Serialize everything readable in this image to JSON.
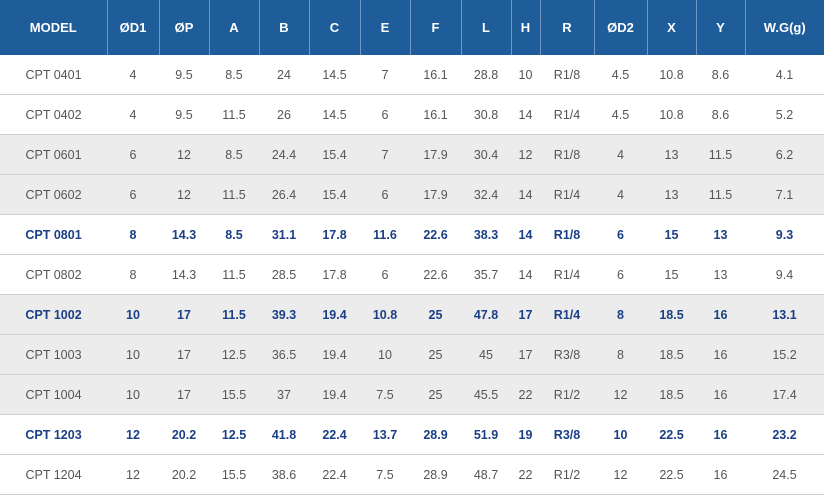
{
  "table": {
    "headers": [
      "MODEL",
      "ØD1",
      "ØP",
      "A",
      "B",
      "C",
      "E",
      "F",
      "L",
      "H",
      "R",
      "ØD2",
      "X",
      "Y",
      "W.G(g)"
    ],
    "rows": [
      {
        "bold": false,
        "shaded": false,
        "cells": [
          "CPT 0401",
          "4",
          "9.5",
          "8.5",
          "24",
          "14.5",
          "7",
          "16.1",
          "28.8",
          "10",
          "R1/8",
          "4.5",
          "10.8",
          "8.6",
          "4.1"
        ]
      },
      {
        "bold": false,
        "shaded": false,
        "cells": [
          "CPT 0402",
          "4",
          "9.5",
          "11.5",
          "26",
          "14.5",
          "6",
          "16.1",
          "30.8",
          "14",
          "R1/4",
          "4.5",
          "10.8",
          "8.6",
          "5.2"
        ]
      },
      {
        "bold": false,
        "shaded": true,
        "cells": [
          "CPT 0601",
          "6",
          "12",
          "8.5",
          "24.4",
          "15.4",
          "7",
          "17.9",
          "30.4",
          "12",
          "R1/8",
          "4",
          "13",
          "11.5",
          "6.2"
        ]
      },
      {
        "bold": false,
        "shaded": true,
        "cells": [
          "CPT 0602",
          "6",
          "12",
          "11.5",
          "26.4",
          "15.4",
          "6",
          "17.9",
          "32.4",
          "14",
          "R1/4",
          "4",
          "13",
          "11.5",
          "7.1"
        ]
      },
      {
        "bold": true,
        "shaded": false,
        "cells": [
          "CPT 0801",
          "8",
          "14.3",
          "8.5",
          "31.1",
          "17.8",
          "11.6",
          "22.6",
          "38.3",
          "14",
          "R1/8",
          "6",
          "15",
          "13",
          "9.3"
        ]
      },
      {
        "bold": false,
        "shaded": false,
        "cells": [
          "CPT 0802",
          "8",
          "14.3",
          "11.5",
          "28.5",
          "17.8",
          "6",
          "22.6",
          "35.7",
          "14",
          "R1/4",
          "6",
          "15",
          "13",
          "9.4"
        ]
      },
      {
        "bold": true,
        "shaded": true,
        "cells": [
          "CPT 1002",
          "10",
          "17",
          "11.5",
          "39.3",
          "19.4",
          "10.8",
          "25",
          "47.8",
          "17",
          "R1/4",
          "8",
          "18.5",
          "16",
          "13.1"
        ]
      },
      {
        "bold": false,
        "shaded": true,
        "cells": [
          "CPT 1003",
          "10",
          "17",
          "12.5",
          "36.5",
          "19.4",
          "10",
          "25",
          "45",
          "17",
          "R3/8",
          "8",
          "18.5",
          "16",
          "15.2"
        ]
      },
      {
        "bold": false,
        "shaded": true,
        "cells": [
          "CPT 1004",
          "10",
          "17",
          "15.5",
          "37",
          "19.4",
          "7.5",
          "25",
          "45.5",
          "22",
          "R1/2",
          "12",
          "18.5",
          "16",
          "17.4"
        ]
      },
      {
        "bold": true,
        "shaded": false,
        "cells": [
          "CPT 1203",
          "12",
          "20.2",
          "12.5",
          "41.8",
          "22.4",
          "13.7",
          "28.9",
          "51.9",
          "19",
          "R3/8",
          "10",
          "22.5",
          "16",
          "23.2"
        ]
      },
      {
        "bold": false,
        "shaded": false,
        "cells": [
          "CPT 1204",
          "12",
          "20.2",
          "15.5",
          "38.6",
          "22.4",
          "7.5",
          "28.9",
          "48.7",
          "22",
          "R1/2",
          "12",
          "22.5",
          "16",
          "24.5"
        ]
      }
    ]
  },
  "colors": {
    "header_bg": "#1e5d9a",
    "header_text": "#ffffff",
    "highlight_text": "#1b3f86",
    "shaded_row": "#ececec",
    "body_text": "#555555"
  }
}
